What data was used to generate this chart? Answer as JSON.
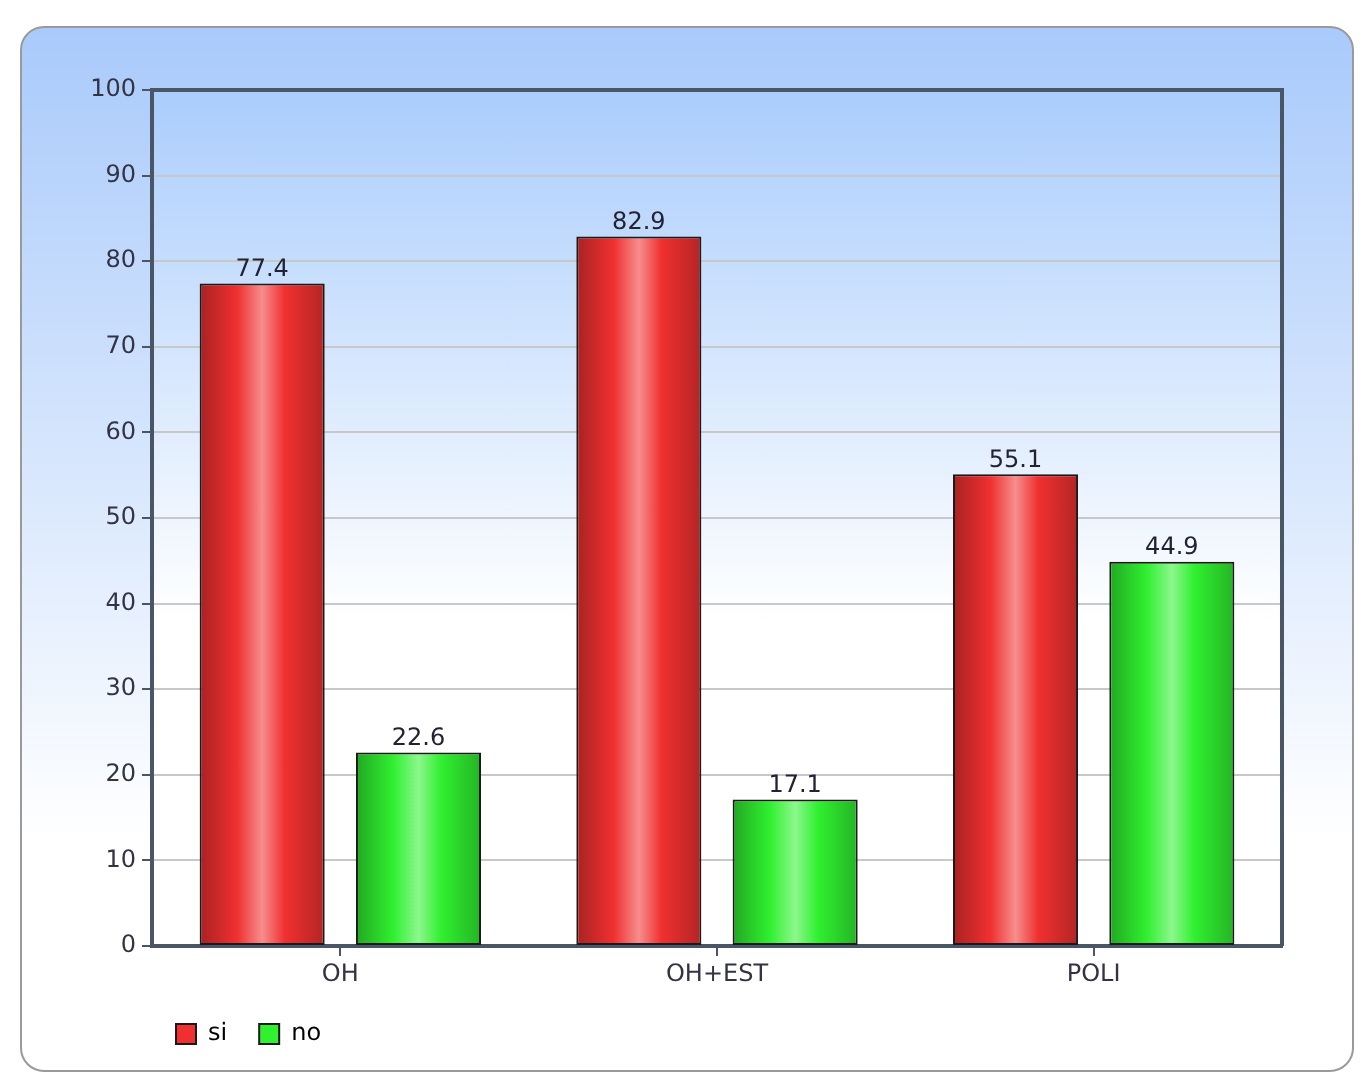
{
  "chart_data": {
    "type": "bar",
    "categories": [
      "OH",
      "OH+EST",
      "POLI"
    ],
    "series": [
      {
        "name": "si",
        "color": "#f03030",
        "values": [
          77.4,
          82.9,
          55.1
        ]
      },
      {
        "name": "no",
        "color": "#30f030",
        "values": [
          22.6,
          17.1,
          44.9
        ]
      }
    ],
    "ylim": [
      0,
      100
    ],
    "yticks": [
      0,
      10,
      20,
      30,
      40,
      50,
      60,
      70,
      80,
      90,
      100
    ],
    "grid": "y",
    "legend": "bottom left",
    "data_labels": true
  }
}
